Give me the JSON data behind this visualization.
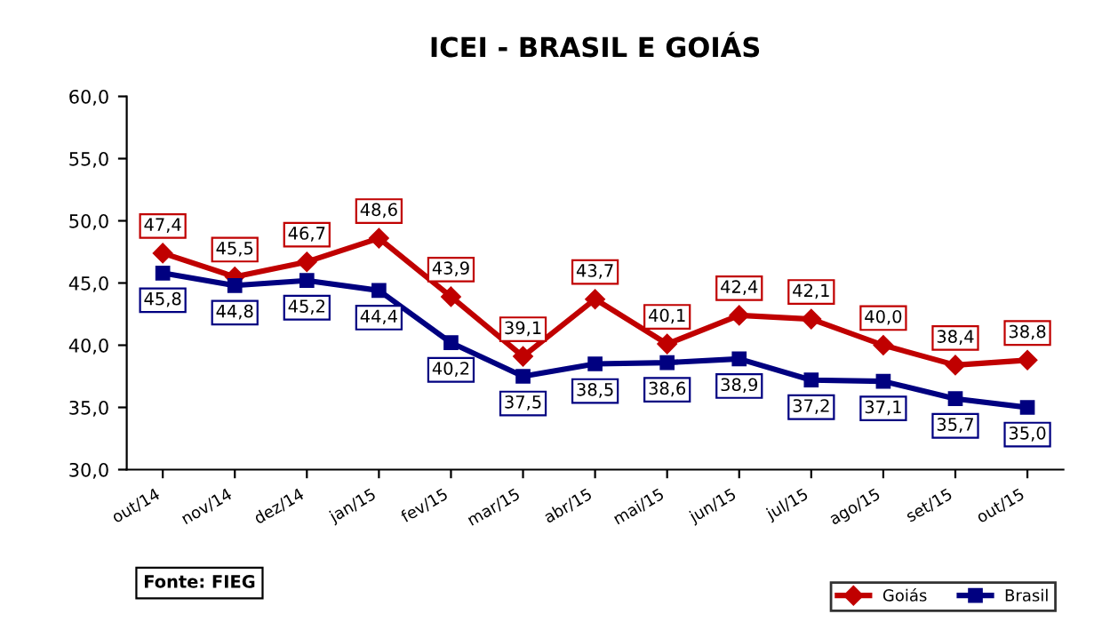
{
  "chart_data": {
    "type": "line",
    "title": "ICEI - BRASIL E GOIÁS",
    "categories": [
      "out/14",
      "nov/14",
      "dez/14",
      "jan/15",
      "fev/15",
      "mar/15",
      "abr/15",
      "mai/15",
      "jun/15",
      "jul/15",
      "ago/15",
      "set/15",
      "out/15"
    ],
    "series": [
      {
        "name": "Goiás",
        "color": "#c00000",
        "marker": "diamond",
        "values": [
          47.4,
          45.5,
          46.7,
          48.6,
          43.9,
          39.1,
          43.7,
          40.1,
          42.4,
          42.1,
          40.0,
          38.4,
          38.8
        ],
        "value_labels": [
          "47,4",
          "45,5",
          "46,7",
          "48,6",
          "43,9",
          "39,1",
          "43,7",
          "40,1",
          "42,4",
          "42,1",
          "40,0",
          "38,4",
          "38,8"
        ]
      },
      {
        "name": "Brasil",
        "color": "#000080",
        "marker": "square",
        "values": [
          45.8,
          44.8,
          45.2,
          44.4,
          40.2,
          37.5,
          38.5,
          38.6,
          38.9,
          37.2,
          37.1,
          35.7,
          35.0
        ],
        "value_labels": [
          "45,8",
          "44,8",
          "45,2",
          "44,4",
          "40,2",
          "37,5",
          "38,5",
          "38,6",
          "38,9",
          "37,2",
          "37,1",
          "35,7",
          "35,0"
        ]
      }
    ],
    "ylim": [
      30,
      60
    ],
    "yticks": [
      {
        "value": 30,
        "label": "30,0"
      },
      {
        "value": 35,
        "label": "35,0"
      },
      {
        "value": 40,
        "label": "40,0"
      },
      {
        "value": 45,
        "label": "45,0"
      },
      {
        "value": 50,
        "label": "50,0"
      },
      {
        "value": 55,
        "label": "55,0"
      },
      {
        "value": 60,
        "label": "60,0"
      }
    ],
    "legend": "bottom right",
    "annotations": [
      "Fonte: FIEG"
    ]
  }
}
